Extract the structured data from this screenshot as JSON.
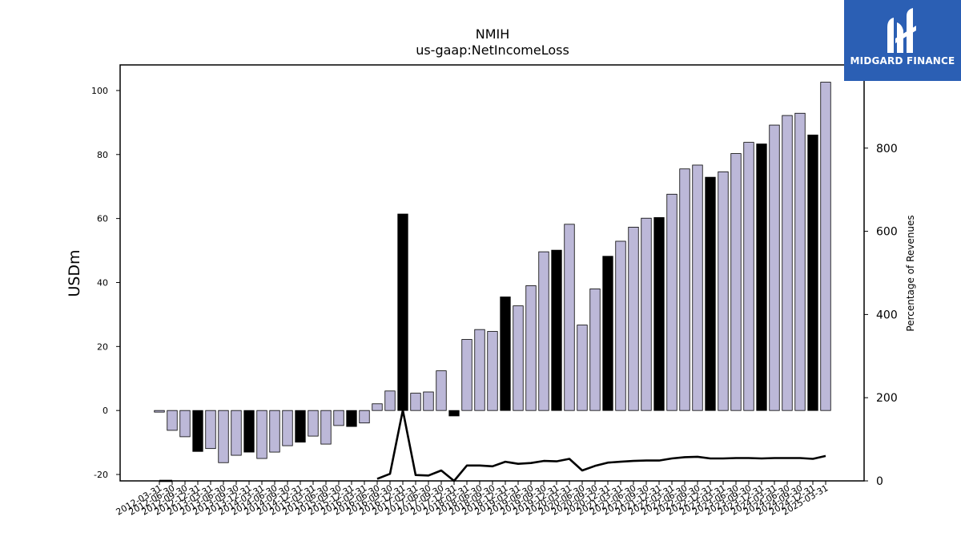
{
  "chart_data": {
    "type": "bar",
    "title": "NMIH",
    "subtitle": "us-gaap:NetIncomeLoss",
    "ylabel": "USDm",
    "y2label": "Percentage of Revenues",
    "ylim": [
      -22,
      108
    ],
    "y2lim": [
      0,
      1000
    ],
    "yticks": [
      -20,
      0,
      20,
      40,
      60,
      80,
      100
    ],
    "y2ticks": [
      0,
      200,
      400,
      600,
      800
    ],
    "grid": false,
    "legend": "none",
    "colors": {
      "bar": "#bcb8d8",
      "bar_highlight": "#000000",
      "line": "#000000",
      "edge": "#000000"
    },
    "categories": [
      "2012-03-31",
      "2012-06-30",
      "2012-09-30",
      "2012-12-31",
      "2013-03-31",
      "2013-06-30",
      "2013-09-30",
      "2013-12-31",
      "2014-03-31",
      "2014-06-30",
      "2014-09-30",
      "2014-12-31",
      "2015-03-31",
      "2015-06-30",
      "2015-09-30",
      "2015-12-31",
      "2016-03-31",
      "2016-06-30",
      "2016-09-30",
      "2016-12-31",
      "2017-03-31",
      "2017-06-30",
      "2017-09-30",
      "2017-12-31",
      "2018-03-31",
      "2018-06-30",
      "2018-09-30",
      "2018-12-31",
      "2019-03-31",
      "2019-06-30",
      "2019-09-30",
      "2019-12-31",
      "2020-03-31",
      "2020-06-30",
      "2020-09-30",
      "2020-12-31",
      "2021-03-31",
      "2021-06-30",
      "2021-09-30",
      "2021-12-31",
      "2022-03-31",
      "2022-06-30",
      "2022-09-30",
      "2022-12-31",
      "2023-03-31",
      "2023-06-30",
      "2023-09-30",
      "2023-12-31",
      "2024-03-31",
      "2024-06-30",
      "2024-09-30",
      "2024-12-31",
      "2025-03-31"
    ],
    "x_tick_labels": [
      "2012-03-31",
      "2012-06-30",
      "2012-09-30",
      "2012-12-31",
      "2013-03-31",
      "2013-06-30",
      "2013-09-30",
      "2013-12-31",
      "2014-03-31",
      "2014-06-30",
      "2014-09-30",
      "2014-12-31",
      "2015-03-31",
      "2015-06-30",
      "2015-09-30",
      "2015-12-31",
      "2016-03-31",
      "2016-06-30",
      "2016-09-30",
      "2016-12-31",
      "2017-03-31",
      "2017-06-30",
      "2017-09-30",
      "2017-12-31",
      "2018-03-31",
      "2018-06-30",
      "2018-09-30",
      "2018-12-31",
      "2019-03-31",
      "2019-06-30",
      "2019-09-30",
      "2019-12-31",
      "2020-03-31",
      "2020-06-30",
      "2020-09-30",
      "2020-12-31",
      "2021-03-31",
      "2021-06-30",
      "2021-09-30",
      "2021-12-31",
      "2022-03-31",
      "2022-06-30",
      "2022-09-30",
      "2022-12-31",
      "2023-03-31",
      "2023-06-30",
      "2023-09-30",
      "2023-12-31",
      "2024-03-31",
      "2024-06-30",
      "2024-09-30",
      "2024-12-31",
      "2025-03-31"
    ],
    "values": [
      -0.5,
      -6.2,
      -8.2,
      -12.8,
      -11.9,
      -16.3,
      -14.0,
      -13.0,
      -15.0,
      -13.0,
      -11.0,
      -9.9,
      -8.0,
      -10.5,
      -4.7,
      -5.0,
      -3.9,
      2.1,
      6.1,
      61.4,
      5.4,
      5.8,
      12.4,
      -1.7,
      22.2,
      25.3,
      24.7,
      35.5,
      32.7,
      39.0,
      49.6,
      50.1,
      58.2,
      26.7,
      38.0,
      48.2,
      52.9,
      57.3,
      60.1,
      60.3,
      67.6,
      75.5,
      76.7,
      72.9,
      74.6,
      80.3,
      83.8,
      83.3,
      89.2,
      92.2,
      92.9,
      86.1,
      102.6
    ],
    "highlight": [
      false,
      false,
      false,
      true,
      false,
      false,
      false,
      true,
      false,
      false,
      false,
      true,
      false,
      false,
      false,
      true,
      false,
      false,
      false,
      true,
      false,
      false,
      false,
      true,
      false,
      false,
      false,
      true,
      false,
      false,
      false,
      true,
      false,
      false,
      false,
      true,
      false,
      false,
      false,
      true,
      false,
      false,
      false,
      true,
      false,
      false,
      false,
      true,
      false,
      false,
      false,
      true,
      false
    ],
    "line_values": [
      0,
      0,
      null,
      null,
      null,
      null,
      null,
      null,
      null,
      null,
      null,
      null,
      null,
      null,
      null,
      null,
      null,
      5,
      17,
      170,
      14,
      13,
      25,
      0,
      37,
      37,
      35,
      46,
      41,
      43,
      48,
      47,
      53,
      25,
      36,
      44,
      46,
      48,
      49,
      49,
      54,
      57,
      58,
      54,
      54,
      55,
      55,
      54,
      55,
      55,
      55,
      53,
      60
    ]
  },
  "brand": {
    "name": "MIDGARD FINANCE"
  }
}
